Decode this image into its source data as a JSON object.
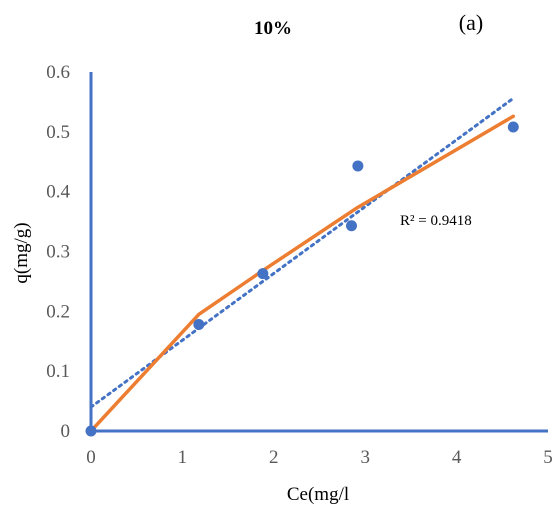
{
  "chart_data": {
    "type": "scatter",
    "title": "10%",
    "panel_label": "(a)",
    "xlabel": "Ce(mg/l",
    "ylabel": "q(mg/g)",
    "xlim": [
      0,
      5
    ],
    "ylim": [
      0,
      0.6
    ],
    "x_ticks": [
      "0",
      "1",
      "2",
      "3",
      "4",
      "5"
    ],
    "y_ticks": [
      "0",
      "0.1",
      "0.2",
      "0.3",
      "0.4",
      "0.5",
      "0.6"
    ],
    "grid": false,
    "annotation": "R² = 0.9418",
    "points": [
      {
        "x": 0,
        "y": 0
      },
      {
        "x": 1.18,
        "y": 0.178
      },
      {
        "x": 1.88,
        "y": 0.263
      },
      {
        "x": 2.85,
        "y": 0.343
      },
      {
        "x": 2.92,
        "y": 0.443
      },
      {
        "x": 4.62,
        "y": 0.508
      }
    ],
    "fit_curve": [
      {
        "x": 0,
        "y": 0
      },
      {
        "x": 1.18,
        "y": 0.195
      },
      {
        "x": 1.88,
        "y": 0.268
      },
      {
        "x": 2.9,
        "y": 0.372
      },
      {
        "x": 4.62,
        "y": 0.526
      }
    ],
    "trendline": [
      {
        "x": 0,
        "y": 0.04
      },
      {
        "x": 4.62,
        "y": 0.556
      }
    ],
    "colors": {
      "points": "#4472C4",
      "fit_curve": "#ED7D31",
      "trendline": "#4472C4",
      "axes": "#4472C4"
    }
  }
}
